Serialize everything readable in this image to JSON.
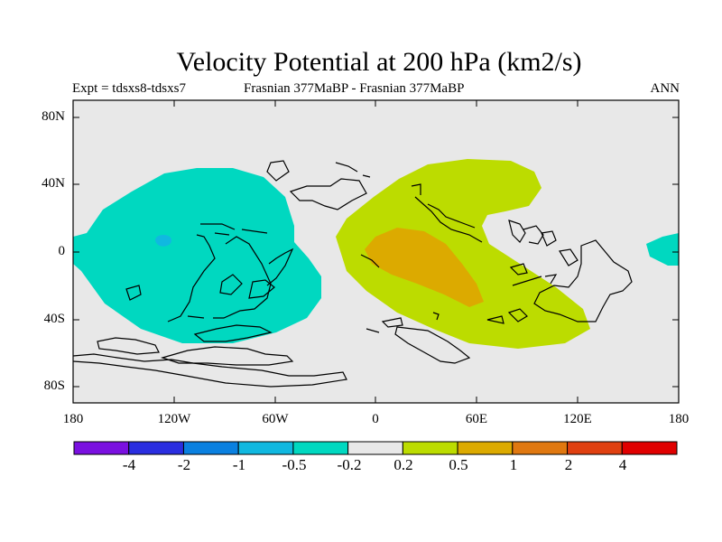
{
  "title": "Velocity Potential at 200 hPa (km2/s)",
  "subtitle_left": "Expt = tdsxs8-tdsxs7",
  "subtitle_center": "Frasnian 377MaBP - Frasnian 377MaBP",
  "subtitle_right": "ANN",
  "lat_ticks": [
    "80N",
    "40N",
    "0",
    "40S",
    "80S"
  ],
  "lon_ticks": [
    "180",
    "120W",
    "60W",
    "0",
    "60E",
    "120E",
    "180"
  ],
  "colorbar": {
    "labels": [
      "-4",
      "-2",
      "-1",
      "-0.5",
      "-0.2",
      "0.2",
      "0.5",
      "1",
      "2",
      "4"
    ],
    "colors": [
      "#7a10e0",
      "#2a2ee0",
      "#0a80e0",
      "#10b8e0",
      "#00d8c0",
      "#e8e8e8",
      "#bcdc00",
      "#dcaa00",
      "#e07810",
      "#e04010",
      "#e00000"
    ]
  },
  "colors": {
    "background_field": "#e8e8e8",
    "neg_region": "#00d8c0",
    "neg_core": "#10b8e0",
    "pos_region": "#bcdc00",
    "pos_core": "#dcaa00"
  },
  "chart_data": {
    "type": "filled-contour-map",
    "variable": "Velocity Potential at 200 hPa",
    "units": "km2/s",
    "contour_levels": [
      -4,
      -2,
      -1,
      -0.5,
      -0.2,
      0.2,
      0.5,
      1,
      2,
      4
    ],
    "xlim": [
      -180,
      180
    ],
    "ylim": [
      -90,
      90
    ],
    "features": [
      {
        "name": "negative anomaly",
        "range": "-0.5 to -0.2",
        "center_lon": -110,
        "center_lat": 5
      },
      {
        "name": "negative core",
        "range": "-1 to -0.5",
        "center_lon": -128,
        "center_lat": 5
      },
      {
        "name": "positive anomaly",
        "range": "0.2 to 0.5",
        "center_lon": 55,
        "center_lat": 0
      },
      {
        "name": "positive core",
        "range": "0.5 to 1",
        "center_lon": 30,
        "center_lat": -10
      },
      {
        "name": "negative anomaly (east edge)",
        "range": "-0.5 to -0.2",
        "center_lon": 175,
        "center_lat": 0
      }
    ]
  }
}
